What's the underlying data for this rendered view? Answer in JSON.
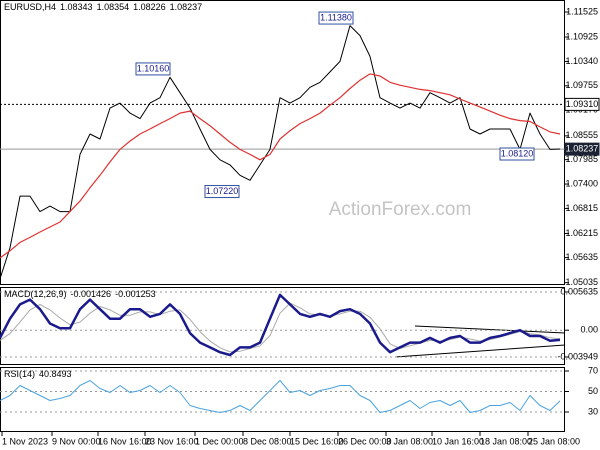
{
  "chart_data": [
    {
      "type": "line",
      "title": "EURUSD,H4",
      "header_values": [
        1.08343,
        1.08354,
        1.08226,
        1.08237
      ],
      "watermark": "ActionForex.com",
      "x": [
        0,
        10,
        20,
        30,
        40,
        50,
        60,
        70,
        80,
        90,
        100,
        110,
        120,
        130,
        140,
        150,
        160,
        170,
        180,
        190,
        200,
        210,
        220,
        230,
        240,
        250,
        260,
        270,
        280,
        290,
        300,
        310,
        320,
        330,
        340,
        350,
        360,
        370,
        380,
        390,
        400,
        410,
        420,
        430,
        440,
        450,
        460,
        470,
        480,
        490,
        500,
        510,
        520,
        530,
        540,
        550,
        560
      ],
      "xlim": [
        0,
        565
      ],
      "ylim": [
        1.04979,
        1.11813
      ],
      "yticks": [
        1.11525,
        1.10925,
        {
          "value": 1.1034,
          "label": "1.10340"
        },
        1.09755,
        {
          "value": 1.0917,
          "label": "1.09170"
        },
        1.08555,
        1.07985,
        {
          "value": 1.074,
          "label": "1.07400"
        },
        1.06815,
        1.06215,
        1.05635,
        1.05035
      ],
      "series": [
        {
          "color": "#000000",
          "width": 1,
          "values": [
            1.0513,
            1.0587,
            1.0711,
            1.0711,
            1.0674,
            1.0687,
            1.0674,
            1.0674,
            1.0811,
            1.086,
            1.0848,
            1.0922,
            1.0934,
            1.091,
            1.0897,
            1.0934,
            1.0947,
            1.0996,
            1.0959,
            1.0922,
            1.0872,
            1.0823,
            1.0798,
            1.0786,
            1.0761,
            1.0749,
            1.0786,
            1.0823,
            1.0947,
            1.0934,
            1.0947,
            1.0972,
            1.0984,
            1.1009,
            1.1034,
            1.112,
            1.1096,
            1.1046,
            1.0947,
            1.0934,
            1.0922,
            1.0934,
            1.0922,
            1.0959,
            1.0947,
            1.0934,
            1.0947,
            1.0872,
            1.086,
            1.0872,
            1.0872,
            1.0872,
            1.0823,
            1.091,
            1.086,
            1.0823,
            1.0824
          ]
        },
        {
          "color": "#e03030",
          "width": 1.2,
          "values": [
            1.0563,
            1.058,
            1.06,
            1.0612,
            1.0625,
            1.0637,
            1.0649,
            1.0674,
            1.0699,
            1.0731,
            1.0761,
            1.0793,
            1.0823,
            1.0843,
            1.086,
            1.0872,
            1.0885,
            1.0897,
            1.091,
            1.0915,
            1.0897,
            1.088,
            1.086,
            1.084,
            1.0823,
            1.0811,
            1.0798,
            1.0811,
            1.0848,
            1.0868,
            1.0885,
            1.0897,
            1.091,
            1.0929,
            1.0947,
            1.0969,
            1.0989,
            1.1004,
            1.0999,
            1.0984,
            1.0977,
            1.0972,
            1.0967,
            1.0964,
            1.0959,
            1.0954,
            1.0944,
            1.0934,
            1.0925,
            1.0915,
            1.0905,
            1.0897,
            1.0892,
            1.089,
            1.0877,
            1.0865,
            1.086
          ]
        }
      ],
      "annotations": [
        {
          "label": "1.11380",
          "value": 1.1138,
          "x": 336
        },
        {
          "label": "1.10160",
          "value": 1.1016,
          "x": 153
        },
        {
          "label": "1.07220",
          "value": 1.0722,
          "x": 222
        },
        {
          "label": "1.08120",
          "value": 1.0812,
          "x": 517
        }
      ],
      "levels": [
        {
          "label": "1.09310",
          "value": 1.0931,
          "style": "dotted"
        },
        {
          "label": "1.08237",
          "value": 1.08237,
          "style": "current"
        }
      ]
    },
    {
      "type": "line",
      "title": "MACD(12,26,9)",
      "header_values": [
        -0.001426,
        -0.001253
      ],
      "x": [
        0,
        10,
        20,
        30,
        40,
        50,
        60,
        70,
        80,
        90,
        100,
        110,
        120,
        130,
        140,
        150,
        160,
        170,
        180,
        190,
        200,
        210,
        220,
        230,
        240,
        250,
        260,
        270,
        280,
        290,
        300,
        310,
        320,
        330,
        340,
        350,
        360,
        370,
        380,
        390,
        400,
        410,
        420,
        430,
        440,
        450,
        460,
        470,
        480,
        490,
        500,
        510,
        520,
        530,
        540,
        550,
        560
      ],
      "xlim": [
        0,
        565
      ],
      "ylim": [
        -0.00513,
        0.00637
      ],
      "grid": true,
      "yticks": [
        0.005635,
        {
          "value": 0,
          "label": "0.00"
        },
        -0.003949
      ],
      "series": [
        {
          "color": "#aaaaaa",
          "width": 1,
          "values": [
            -0.0015,
            -0.0005,
            0.0012,
            0.003,
            0.0038,
            0.003,
            0.0018,
            0.0008,
            0.0012,
            0.0025,
            0.0035,
            0.003,
            0.0022,
            0.0022,
            0.0027,
            0.0027,
            0.0023,
            0.0028,
            0.003,
            0.0016,
            -0.0002,
            -0.0016,
            -0.0026,
            -0.0032,
            -0.0031,
            -0.0027,
            -0.0023,
            -0.0008,
            0.0025,
            0.004,
            0.0033,
            0.0024,
            0.0022,
            0.0021,
            0.0024,
            0.0028,
            0.0028,
            0.0019,
            0.0002,
            -0.002,
            -0.0027,
            -0.0023,
            -0.0019,
            -0.0015,
            -0.0016,
            -0.0014,
            -0.001,
            -0.0013,
            -0.0016,
            -0.0014,
            -0.001,
            -0.0006,
            -0.0002,
            -0.0005,
            -0.0007,
            -0.0011,
            -0.00125
          ]
        },
        {
          "color": "#1a1a8c",
          "width": 2.5,
          "values": [
            -0.00113,
            0.00169,
            0.0038,
            0.00451,
            0.0031,
            0.00099,
            0.00028,
            0.00028,
            0.0031,
            0.00451,
            0.0031,
            0.00169,
            0.00169,
            0.0031,
            0.0031,
            0.00197,
            0.0024,
            0.0038,
            0.0024,
            -0.00042,
            -0.00183,
            -0.00254,
            -0.00324,
            -0.00366,
            -0.00254,
            -0.00254,
            -0.00183,
            0.00169,
            0.00521,
            0.0038,
            0.0024,
            0.00197,
            0.0024,
            0.00197,
            0.00282,
            0.0031,
            0.0024,
            0.00099,
            -0.00183,
            -0.00324,
            -0.00254,
            -0.00183,
            -0.00183,
            -0.00113,
            -0.00183,
            -0.00113,
            -0.00085,
            -0.00183,
            -0.00183,
            -0.00113,
            -0.00085,
            -0.00042,
            0,
            -0.00085,
            -0.00085,
            -0.00155,
            -0.00143
          ]
        }
      ]
    },
    {
      "type": "line",
      "title": "RSI(14)",
      "header_values": [
        40.8493
      ],
      "x": [
        0,
        10,
        20,
        30,
        40,
        50,
        60,
        70,
        80,
        90,
        100,
        110,
        120,
        130,
        140,
        150,
        160,
        170,
        180,
        190,
        200,
        210,
        220,
        230,
        240,
        250,
        260,
        270,
        280,
        290,
        300,
        310,
        320,
        330,
        340,
        350,
        360,
        370,
        380,
        390,
        400,
        410,
        420,
        430,
        440,
        450,
        460,
        470,
        480,
        490,
        500,
        510,
        520,
        530,
        540,
        550,
        560
      ],
      "xlim": [
        0,
        565
      ],
      "ylim": [
        10.5,
        73.9
      ],
      "grid": true,
      "yticks": [
        70,
        50,
        30
      ],
      "xticks": [
        {
          "value": 2,
          "label": "1 Nov 2023"
        },
        {
          "value": 52,
          "label": "9 Nov 00:00"
        },
        {
          "value": 98,
          "label": "16 Nov 16:00"
        },
        {
          "value": 145,
          "label": "23 Nov 16:00"
        },
        {
          "value": 195,
          "label": "1 Dec 00:00"
        },
        {
          "value": 243,
          "label": "8 Dec 08:00"
        },
        {
          "value": 290,
          "label": "15 Dec 16:00"
        },
        {
          "value": 338,
          "label": "26 Dec 00:00"
        },
        {
          "value": 386,
          "label": "3 Jan 08:00"
        },
        {
          "value": 432,
          "label": "10 Jan 16:00"
        },
        {
          "value": 480,
          "label": "18 Jan 08:00"
        },
        {
          "value": 528,
          "label": "25 Jan 08:00"
        }
      ],
      "series": [
        {
          "color": "#4aa3df",
          "width": 1,
          "values": [
            41.2,
            46.1,
            55.9,
            51.0,
            46.1,
            41.2,
            43.2,
            46.1,
            55.9,
            60.7,
            52.9,
            49.0,
            55.9,
            49.0,
            51.0,
            55.9,
            49.0,
            55.9,
            49.0,
            36.3,
            33.4,
            31.5,
            29.5,
            31.5,
            36.3,
            31.5,
            41.2,
            51.0,
            60.7,
            49.0,
            51.0,
            46.1,
            51.0,
            52.9,
            55.9,
            55.9,
            46.1,
            41.2,
            29.5,
            31.5,
            36.3,
            41.2,
            33.4,
            39.3,
            41.2,
            36.3,
            41.2,
            29.5,
            31.5,
            36.3,
            36.3,
            39.3,
            31.5,
            46.1,
            36.3,
            31.5,
            40.8
          ]
        }
      ]
    }
  ]
}
